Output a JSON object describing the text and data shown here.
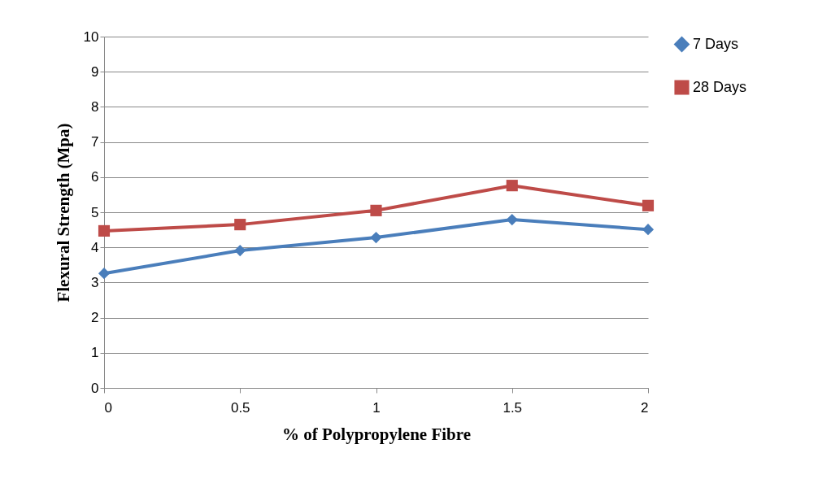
{
  "chart_data": {
    "type": "line",
    "xlabel": "% of Polypropylene Fibre",
    "ylabel": "Flexural Strength  (Mpa)",
    "categories": [
      "0",
      "0.5",
      "1",
      "1.5",
      "2"
    ],
    "series": [
      {
        "name": "7 Days",
        "color": "#4a7ebb",
        "marker": "diamond",
        "values": [
          3.26,
          3.91,
          4.28,
          4.79,
          4.51
        ]
      },
      {
        "name": "28 Days",
        "color": "#be4b48",
        "marker": "square",
        "values": [
          4.47,
          4.65,
          5.05,
          5.76,
          5.19
        ]
      }
    ],
    "ylim": [
      0,
      10
    ],
    "yticks": [
      0,
      1,
      2,
      3,
      4,
      5,
      6,
      7,
      8,
      9,
      10
    ],
    "grid": "y",
    "legend": "right"
  }
}
